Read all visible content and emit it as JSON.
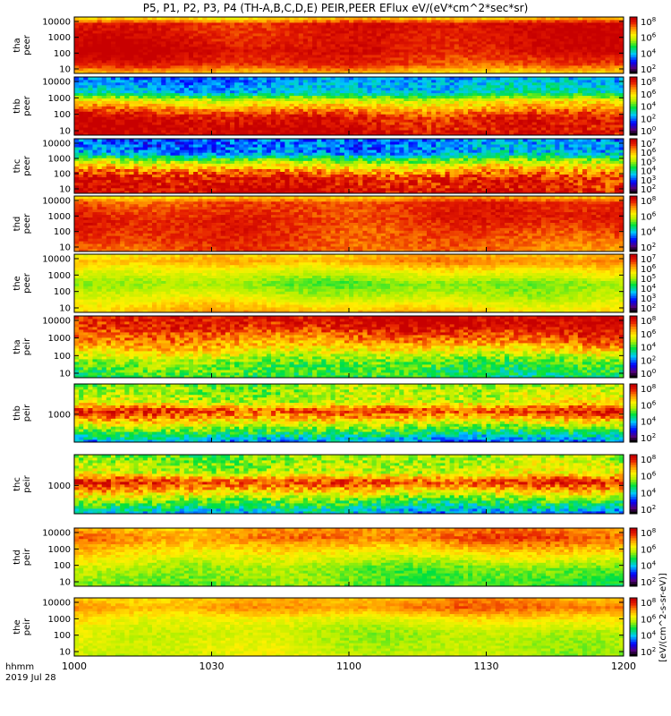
{
  "chart_data": {
    "type": "heatmap",
    "title": "P5, P1, P2, P3, P4 (TH-A,B,C,D,E) PEIR,PEER EFlux eV/(eV*cm^2*sec*sr)",
    "xlabel": "hhmm",
    "date_label": "2019 Jul 28",
    "x_ticks": [
      "1000",
      "1030",
      "1100",
      "1130",
      "1200"
    ],
    "colorbar_unit": "[eV/(cm^2-s-sr-eV)]",
    "panels": [
      {
        "probe": "tha",
        "type": "peer",
        "yticks": [
          "10000",
          "1000",
          "100",
          "10"
        ],
        "zticks": [
          "10^8",
          "10^6",
          "10^4",
          "10^2"
        ],
        "profile": [
          [
            0,
            6
          ],
          [
            0.15,
            7.2
          ],
          [
            0.4,
            7.8
          ],
          [
            0.9,
            7.6
          ],
          [
            1,
            6
          ]
        ],
        "noise": 0.35
      },
      {
        "probe": "thb",
        "type": "peer",
        "yticks": [
          "10000",
          "1000",
          "100",
          "10"
        ],
        "zticks": [
          "10^8",
          "10^6",
          "10^4",
          "10^2",
          "10^0"
        ],
        "profile": [
          [
            0,
            7.8
          ],
          [
            0.3,
            7.6
          ],
          [
            0.5,
            6.2
          ],
          [
            0.62,
            5.2
          ],
          [
            0.75,
            3
          ],
          [
            1,
            2.4
          ]
        ],
        "noise": 0.6
      },
      {
        "probe": "thc",
        "type": "peer",
        "yticks": [
          "10000",
          "1000",
          "100",
          "10"
        ],
        "zticks": [
          "10^7",
          "10^6",
          "10^5",
          "10^4",
          "10^3",
          "10^2"
        ],
        "profile": [
          [
            0,
            7.8
          ],
          [
            0.3,
            7.4
          ],
          [
            0.5,
            5.8
          ],
          [
            0.62,
            4.6
          ],
          [
            0.75,
            2.6
          ],
          [
            1,
            2.2
          ]
        ],
        "noise": 0.8
      },
      {
        "probe": "thd",
        "type": "peer",
        "yticks": [
          "10000",
          "1000",
          "100",
          "10"
        ],
        "zticks": [
          "10^8",
          "10^6",
          "10^4",
          "10^2"
        ],
        "profile": [
          [
            0,
            6.8
          ],
          [
            0.3,
            7.2
          ],
          [
            0.6,
            7.5
          ],
          [
            0.9,
            7.2
          ],
          [
            1,
            6.2
          ]
        ],
        "noise": 0.35
      },
      {
        "probe": "the",
        "type": "peer",
        "yticks": [
          "10000",
          "1000",
          "100",
          "10"
        ],
        "zticks": [
          "10^7",
          "10^6",
          "10^5",
          "10^4",
          "10^3",
          "10^2"
        ],
        "profile": [
          [
            0,
            6
          ],
          [
            0.3,
            5
          ],
          [
            0.5,
            4.6
          ],
          [
            0.75,
            5.6
          ],
          [
            0.9,
            6.4
          ],
          [
            1,
            6
          ]
        ],
        "noise": 0.3
      },
      {
        "probe": "tha",
        "type": "peir",
        "yticks": [
          "10000",
          "1000",
          "100",
          "10"
        ],
        "zticks": [
          "10^8",
          "10^6",
          "10^4",
          "10^2",
          "10^0"
        ],
        "profile": [
          [
            0,
            3.8
          ],
          [
            0.25,
            4.4
          ],
          [
            0.55,
            6.4
          ],
          [
            0.85,
            7.6
          ],
          [
            1,
            7.8
          ]
        ],
        "noise": 0.7
      },
      {
        "probe": "thb",
        "type": "peir",
        "yticks": [
          "1000"
        ],
        "zticks": [
          "10^8",
          "10^6",
          "10^4",
          "10^2"
        ],
        "profile": [
          [
            0,
            2.4
          ],
          [
            0.2,
            4.2
          ],
          [
            0.45,
            6.6
          ],
          [
            0.55,
            7.4
          ],
          [
            0.7,
            5.2
          ],
          [
            1,
            4.6
          ]
        ],
        "noise": 0.8
      },
      {
        "probe": "thc",
        "type": "peir",
        "yticks": [
          "1000"
        ],
        "zticks": [
          "10^8",
          "10^6",
          "10^4",
          "10^2"
        ],
        "profile": [
          [
            0,
            2.6
          ],
          [
            0.2,
            4.2
          ],
          [
            0.45,
            6.6
          ],
          [
            0.55,
            7.4
          ],
          [
            0.7,
            5.2
          ],
          [
            1,
            4.6
          ]
        ],
        "noise": 0.8
      },
      {
        "probe": "thd",
        "type": "peir",
        "yticks": [
          "10000",
          "1000",
          "100",
          "10"
        ],
        "zticks": [
          "10^8",
          "10^6",
          "10^4",
          "10^2"
        ],
        "profile": [
          [
            0,
            4.2
          ],
          [
            0.3,
            4.6
          ],
          [
            0.6,
            5.8
          ],
          [
            0.85,
            6.8
          ],
          [
            1,
            6.4
          ]
        ],
        "noise": 0.4
      },
      {
        "probe": "the",
        "type": "peir",
        "yticks": [
          "10000",
          "1000",
          "100",
          "10"
        ],
        "zticks": [
          "10^8",
          "10^6",
          "10^4",
          "10^2"
        ],
        "profile": [
          [
            0,
            5
          ],
          [
            0.4,
            5
          ],
          [
            0.65,
            5.6
          ],
          [
            0.85,
            6.6
          ],
          [
            1,
            6.2
          ]
        ],
        "noise": 0.3
      }
    ]
  }
}
